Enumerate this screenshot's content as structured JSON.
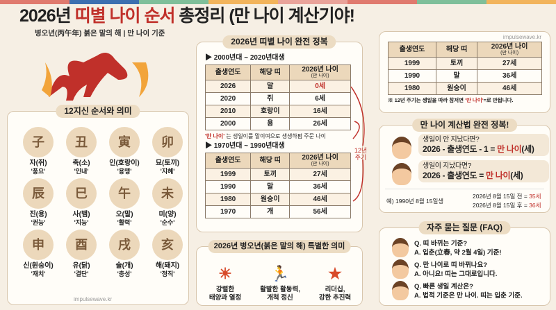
{
  "colors": {
    "accent": "#c0302a",
    "stripe": [
      "#e07a6e",
      "#3d6fb0",
      "#7fbf9a",
      "#f2b45c",
      "#e9a39a",
      "#e07a6e",
      "#7fbf9a",
      "#f2b45c"
    ]
  },
  "header": {
    "title_pre": "2026년 ",
    "title_red": "띠별 나이 순서",
    "title_post": " 총정리 (만 나이 계산기야!",
    "subtitle": "병오년(丙午年) 붉은 말의 해 | 만 나이 기준"
  },
  "zodiac": {
    "title": "12지신 순서와 의미",
    "watermark": "impulsewave.kr",
    "animals": [
      {
        "name": "자(쥐)",
        "meaning": "'풍요'",
        "icon": "rat-icon",
        "glyph": "子"
      },
      {
        "name": "축(소)",
        "meaning": "'인내'",
        "icon": "ox-icon",
        "glyph": "丑"
      },
      {
        "name": "인(호랑이)",
        "meaning": "'용맹'",
        "icon": "tiger-icon",
        "glyph": "寅"
      },
      {
        "name": "묘(토끼)",
        "meaning": "'지혜'",
        "icon": "rabbit-icon",
        "glyph": "卯"
      },
      {
        "name": "진(용)",
        "meaning": "'권능'",
        "icon": "dragon-icon",
        "glyph": "辰"
      },
      {
        "name": "사(뱀)",
        "meaning": "'지능'",
        "icon": "snake-icon",
        "glyph": "巳"
      },
      {
        "name": "오(말)",
        "meaning": "'활력'",
        "icon": "horse-icon",
        "glyph": "午"
      },
      {
        "name": "미(양)",
        "meaning": "'순수'",
        "icon": "sheep-icon",
        "glyph": "未"
      },
      {
        "name": "신(원숭이)",
        "meaning": "'재치'",
        "icon": "monkey-icon",
        "glyph": "申"
      },
      {
        "name": "유(닭)",
        "meaning": "'결단'",
        "icon": "rooster-icon",
        "glyph": "酉"
      },
      {
        "name": "술(개)",
        "meaning": "'충성'",
        "icon": "dog-icon",
        "glyph": "戌"
      },
      {
        "name": "해(돼지)",
        "meaning": "'정직'",
        "icon": "pig-icon",
        "glyph": "亥"
      }
    ]
  },
  "ages": {
    "title": "2026년 띠별 나이 완전 정복",
    "columns": [
      "출생연도",
      "해당 띠",
      "2026년 나이",
      "(만 나이)"
    ],
    "section1": "▶ 2000년대 ~ 2020년대생",
    "rows1": [
      [
        "2026",
        "말",
        "0세"
      ],
      [
        "2020",
        "쥐",
        "6세"
      ],
      [
        "2010",
        "호랑이",
        "16세"
      ],
      [
        "2000",
        "용",
        "26세"
      ]
    ],
    "note_red": "'만 나이'",
    "note": "는 생일이를 말이여으로 생생하펌 주문 나이",
    "section2": "▶ 1970년대 ~ 1990년대생",
    "rows2": [
      [
        "1999",
        "토끼",
        "27세"
      ],
      [
        "1990",
        "말",
        "36세"
      ],
      [
        "1980",
        "원숭이",
        "46세"
      ],
      [
        "1970",
        "개",
        "56세"
      ]
    ],
    "cycle": "12년 주기"
  },
  "right_table": {
    "watermark": "impulsewave.kr",
    "rows": [
      [
        "1999",
        "토끼",
        "27세"
      ],
      [
        "1990",
        "말",
        "36세"
      ],
      [
        "1980",
        "원숭이",
        "46세"
      ]
    ],
    "note": "※ 12년 주기는 생일을 따라 참저면",
    "note_red": "'만 나이'",
    "note_end": "=로 만됩니다."
  },
  "calc": {
    "title": "만 나이 계산법 완전 정복!",
    "q1": "생일이 안 지났다면?",
    "f1": "2026 - 출생연도 - 1 = ",
    "q2": "생일이 지났다면?",
    "f2": "2026 - 출생연도 = ",
    "red": "만 나이",
    "unit": "(세)",
    "example": "예) 1990년 8월 15일생",
    "ex1": "2026년 8월 15일 전 = ",
    "ex1v": "35세",
    "ex2": "2026년 8월 15일 후 = ",
    "ex2v": "36세"
  },
  "meaning": {
    "title": "2026년 병오년(붉은 말의 해) 특별한 의미",
    "items": [
      {
        "icon": "sun-icon",
        "glyph": "☀",
        "l1": "강렬한",
        "l2": "태양과 열정"
      },
      {
        "icon": "running-person-icon",
        "glyph": "🏃",
        "l1": "활발한 활동력,",
        "l2": "개척 정신"
      },
      {
        "icon": "leadership-icon",
        "glyph": "★",
        "l1": "리더십,",
        "l2": "강한 추진력"
      }
    ]
  },
  "faq": {
    "title": "자주 묻는 질문 (FAQ)",
    "items": [
      {
        "q": "Q. 띠 바뀌는 기준?",
        "a": "A. 입춘(立春, 약 2월 4일) 기준!"
      },
      {
        "q": "Q. 만 나이로 띠 바뀌나요?",
        "a": "A. 아니요! 띠는 그대로입니다."
      },
      {
        "q": "Q. 빠른 생일 계산은?",
        "a": "A. 법적 기준은 만 나이. 띠는 입춘 기준."
      }
    ]
  }
}
